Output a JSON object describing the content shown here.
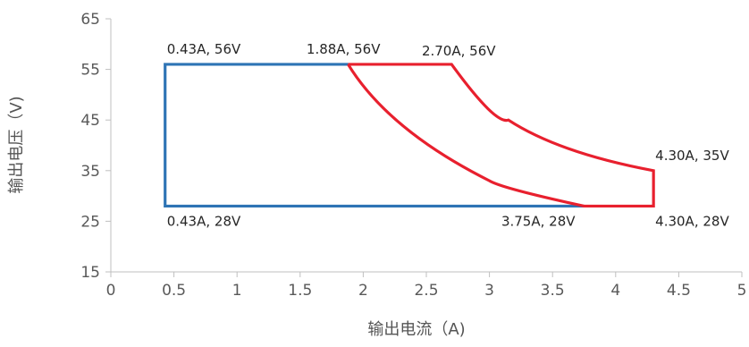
{
  "chart_data": {
    "type": "line",
    "xlabel": "输出电流（A)",
    "ylabel": "输出电压（V)",
    "xlim": [
      0,
      5
    ],
    "ylim": [
      15,
      65
    ],
    "xticks": [
      0,
      0.5,
      1,
      1.5,
      2,
      2.5,
      3,
      3.5,
      4,
      4.5,
      5
    ],
    "xtick_labels": [
      "0",
      "0.5",
      "1",
      "1.5",
      "2",
      "2.5",
      "3",
      "3.5",
      "4",
      "4.5",
      "5"
    ],
    "yticks": [
      15,
      25,
      35,
      45,
      55,
      65
    ],
    "ytick_labels": [
      "15",
      "25",
      "35",
      "45",
      "55",
      "65"
    ],
    "grid": false,
    "series": [
      {
        "color": "#2e74b5",
        "points": [
          [
            0.43,
            56
          ],
          [
            1.88,
            56
          ],
          [
            2.7,
            56
          ],
          [
            2.7,
            56
          ],
          [
            1.88,
            56
          ],
          [
            0.43,
            56
          ],
          [
            0.43,
            28
          ],
          [
            3.75,
            28
          ],
          [
            0.43,
            28
          ]
        ]
      },
      {
        "color": "#e8202e",
        "points": [
          [
            1.88,
            56
          ],
          [
            2.7,
            56
          ],
          [
            3.15,
            45
          ],
          [
            3.6,
            39.5
          ],
          [
            4.3,
            35
          ],
          [
            4.3,
            28
          ],
          [
            3.75,
            28
          ],
          [
            3.0,
            33
          ],
          [
            2.5,
            39
          ],
          [
            1.88,
            56
          ]
        ]
      }
    ],
    "annotations": [
      {
        "text": "0.43A, 56V",
        "x": 0.43,
        "y": 56,
        "pos": "above-right"
      },
      {
        "text": "1.88A, 56V",
        "x": 1.88,
        "y": 56,
        "pos": "above-left"
      },
      {
        "text": "2.70A, 56V",
        "x": 2.7,
        "y": 56,
        "pos": "below-center"
      },
      {
        "text": "4.30A, 35V",
        "x": 4.3,
        "y": 35,
        "pos": "above-right"
      },
      {
        "text": "0.43A, 28V",
        "x": 0.43,
        "y": 28,
        "pos": "below-right"
      },
      {
        "text": "3.75A, 28V",
        "x": 3.75,
        "y": 28,
        "pos": "below-left"
      },
      {
        "text": "4.30A, 28V",
        "x": 4.3,
        "y": 28,
        "pos": "below-right"
      }
    ]
  }
}
